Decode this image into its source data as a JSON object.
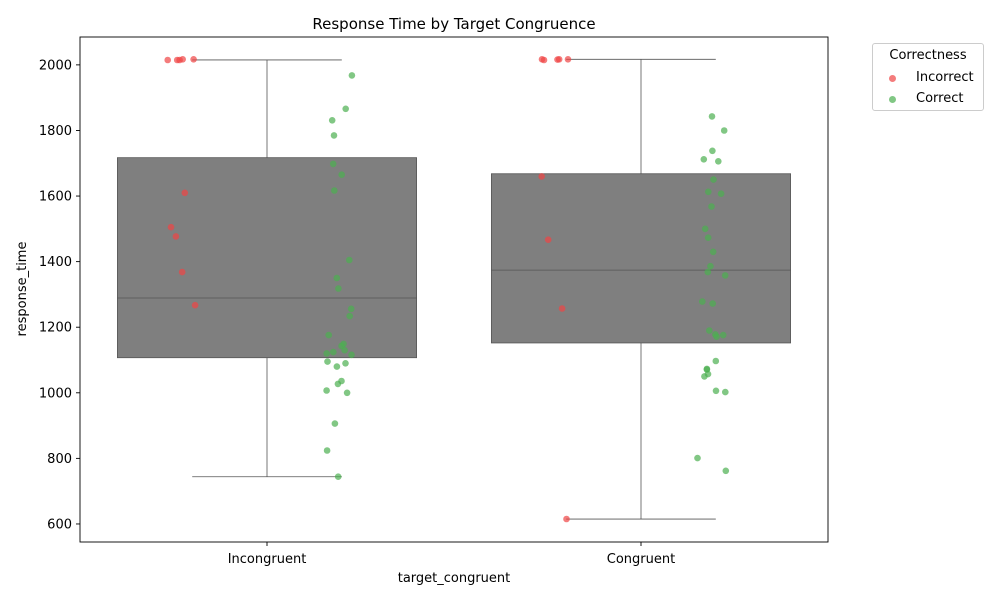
{
  "chart_data": {
    "type": "box+strip",
    "title": "Response Time by Target Congruence",
    "xlabel": "target_congruent",
    "ylabel": "response_time",
    "categories": [
      "Incongruent",
      "Congruent"
    ],
    "ylim": [
      545,
      2085
    ],
    "yticks": [
      600,
      800,
      1000,
      1200,
      1400,
      1600,
      1800,
      2000
    ],
    "grid": false,
    "legend": {
      "title": "Correctness",
      "placement": "outside-right",
      "entries": [
        {
          "label": "Incorrect",
          "color": "#ef4444"
        },
        {
          "label": "Correct",
          "color": "#4caf50"
        }
      ]
    },
    "box_color": "#7f7f7f",
    "boxes": [
      {
        "category": "Incongruent",
        "whislo": 744,
        "q1": 1107,
        "median": 1289,
        "q3": 1717,
        "whishi": 2015
      },
      {
        "category": "Congruent",
        "whislo": 615,
        "q1": 1152,
        "median": 1374,
        "q3": 1668,
        "whishi": 2017
      }
    ],
    "series": [
      {
        "name": "Incorrect",
        "color": "#ef4444",
        "points": [
          {
            "category": "Incongruent",
            "values": [
              2017,
              2015,
              2017,
              2015,
              2015,
              1610,
              1505,
              1477,
              1368,
              1267
            ]
          },
          {
            "category": "Congruent",
            "values": [
              2017,
              2016,
              2017,
              2015,
              2017,
              1660,
              1467,
              1257,
              615
            ]
          }
        ]
      },
      {
        "name": "Correct",
        "color": "#4caf50",
        "points": [
          {
            "category": "Incongruent",
            "values": [
              1968,
              1866,
              1831,
              1785,
              1698,
              1665,
              1617,
              1405,
              1350,
              1318,
              1256,
              1234,
              1176,
              1149,
              1143,
              1130,
              1124,
              1120,
              1116,
              1095,
              1090,
              1080,
              1036,
              1027,
              1007,
              1000,
              906,
              824,
              744
            ]
          },
          {
            "category": "Congruent",
            "values": [
              1843,
              1800,
              1738,
              1712,
              1706,
              1650,
              1613,
              1607,
              1568,
              1500,
              1473,
              1430,
              1386,
              1368,
              1358,
              1278,
              1272,
              1190,
              1178,
              1176,
              1171,
              1097,
              1073,
              1071,
              1057,
              1050,
              1006,
              1002,
              801,
              762
            ]
          }
        ]
      }
    ]
  }
}
